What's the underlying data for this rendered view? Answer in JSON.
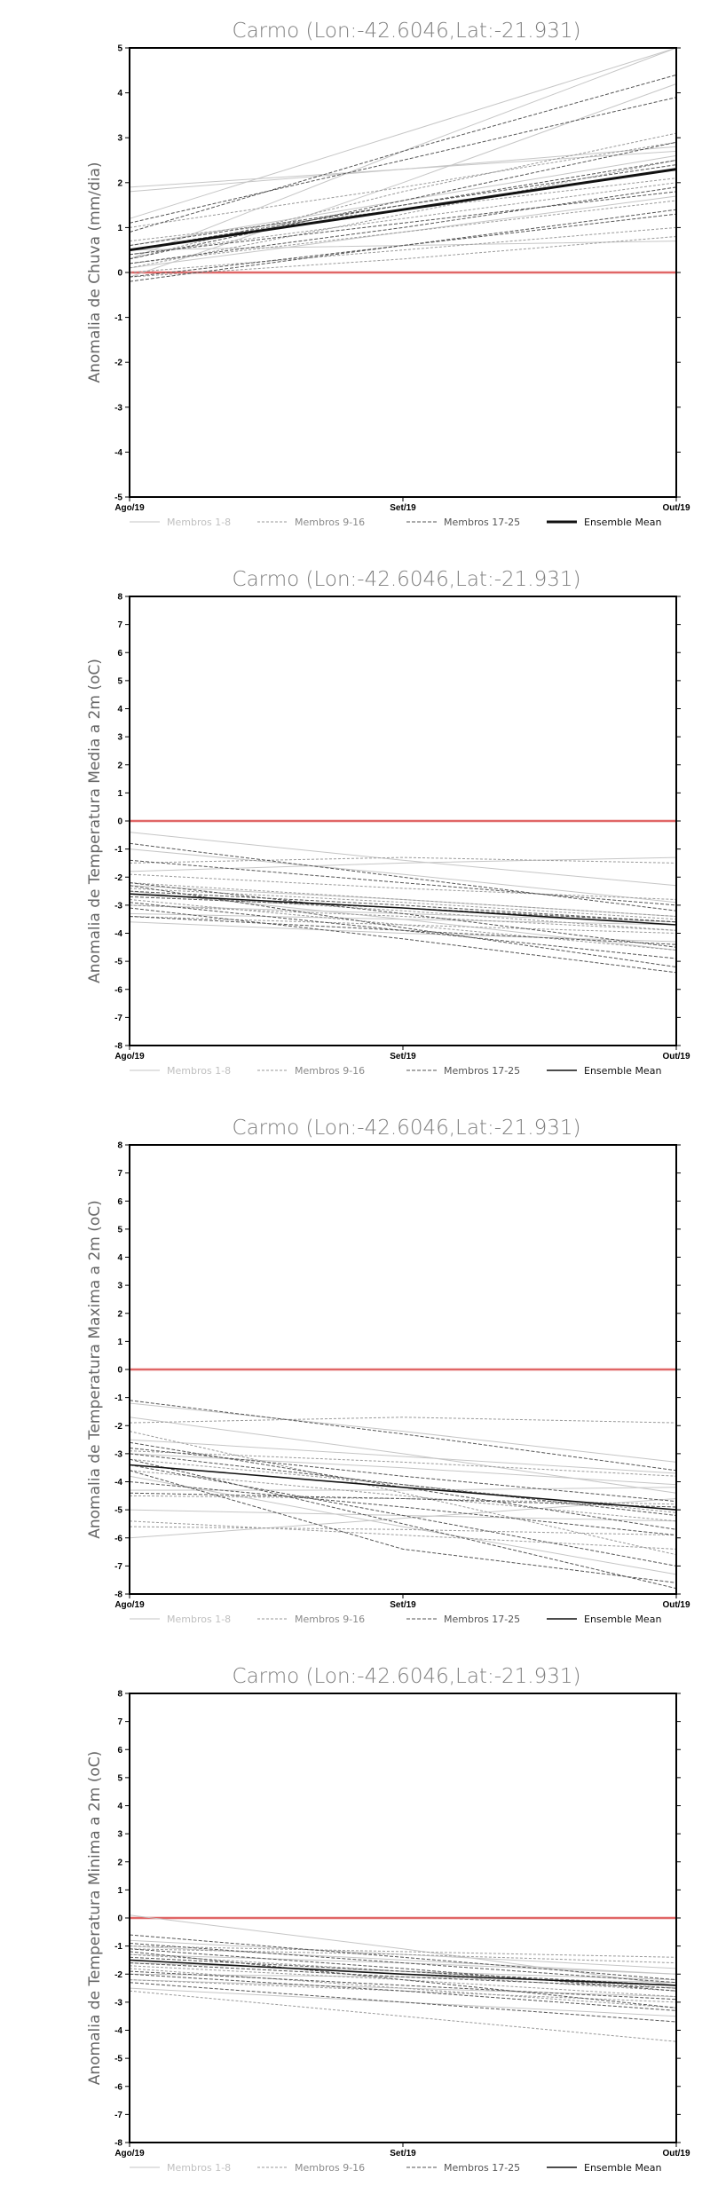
{
  "chart_data": [
    {
      "type": "line",
      "title": "Carmo (Lon:-42.6046,Lat:-21.931)",
      "ylabel": "Anomalia de Chuva (mm/dia)",
      "x": [
        "Ago/19",
        "Set/19",
        "Out/19"
      ],
      "ylim": [
        -5,
        5
      ],
      "yticks": [
        -5,
        -4,
        -3,
        -2,
        -1,
        0,
        1,
        2,
        3,
        4,
        5
      ],
      "mean_bold": true,
      "legend": [
        "Membros 1-8",
        "Membros 9-16",
        "Membros 17-25",
        "Ensemble Mean"
      ],
      "zero_line_color": "#e06666",
      "series": [
        {
          "group": 1,
          "values": [
            0.3,
            2.7,
            5.0
          ]
        },
        {
          "group": 1,
          "values": [
            1.2,
            3.1,
            5.0
          ]
        },
        {
          "group": 1,
          "values": [
            1.9,
            2.3,
            2.7
          ]
        },
        {
          "group": 1,
          "values": [
            1.8,
            2.3,
            2.8
          ]
        },
        {
          "group": 1,
          "values": [
            0.5,
            0.6,
            0.7
          ]
        },
        {
          "group": 1,
          "values": [
            -0.1,
            2.0,
            4.2
          ]
        },
        {
          "group": 1,
          "values": [
            0.1,
            0.9,
            1.7
          ]
        },
        {
          "group": 1,
          "values": [
            0.6,
            1.6,
            2.6
          ]
        },
        {
          "group": 2,
          "values": [
            0.0,
            0.5,
            1.0
          ]
        },
        {
          "group": 2,
          "values": [
            0.3,
            1.8,
            3.1
          ]
        },
        {
          "group": 2,
          "values": [
            1.0,
            1.9,
            2.9
          ]
        },
        {
          "group": 2,
          "values": [
            0.2,
            0.9,
            1.6
          ]
        },
        {
          "group": 2,
          "values": [
            0.4,
            1.2,
            2.0
          ]
        },
        {
          "group": 2,
          "values": [
            -0.1,
            0.3,
            0.8
          ]
        },
        {
          "group": 2,
          "values": [
            0.7,
            1.4,
            2.1
          ]
        },
        {
          "group": 2,
          "values": [
            0.1,
            1.3,
            2.5
          ]
        },
        {
          "group": 3,
          "values": [
            0.9,
            2.7,
            4.4
          ]
        },
        {
          "group": 3,
          "values": [
            1.1,
            2.5,
            3.9
          ]
        },
        {
          "group": 3,
          "values": [
            0.3,
            1.6,
            2.9
          ]
        },
        {
          "group": 3,
          "values": [
            0.5,
            1.5,
            2.5
          ]
        },
        {
          "group": 3,
          "values": [
            -0.1,
            0.6,
            1.3
          ]
        },
        {
          "group": 3,
          "values": [
            0.2,
            1.0,
            1.9
          ]
        },
        {
          "group": 3,
          "values": [
            0.4,
            1.1,
            1.8
          ]
        },
        {
          "group": 3,
          "values": [
            -0.2,
            0.6,
            1.4
          ]
        },
        {
          "group": 3,
          "values": [
            0.6,
            1.5,
            2.4
          ]
        },
        {
          "group": 4,
          "values": [
            0.5,
            1.4,
            2.3
          ]
        }
      ]
    },
    {
      "type": "line",
      "title": "Carmo (Lon:-42.6046,Lat:-21.931)",
      "ylabel": "Anomalia de Temperatura Media a 2m (oC)",
      "x": [
        "Ago/19",
        "Set/19",
        "Out/19"
      ],
      "ylim": [
        -8,
        8
      ],
      "yticks": [
        -8,
        -7,
        -6,
        -5,
        -4,
        -3,
        -2,
        -1,
        0,
        1,
        2,
        3,
        4,
        5,
        6,
        7,
        8
      ],
      "mean_bold": false,
      "legend": [
        "Membros 1-8",
        "Membros 9-16",
        "Membros 17-25",
        "Ensemble Mean"
      ],
      "zero_line_color": "#e06666",
      "series": [
        {
          "group": 1,
          "values": [
            -0.4,
            -1.4,
            -2.3
          ]
        },
        {
          "group": 1,
          "values": [
            -1.8,
            -1.5,
            -1.3
          ]
        },
        {
          "group": 1,
          "values": [
            -2.3,
            -2.8,
            -3.4
          ]
        },
        {
          "group": 1,
          "values": [
            -3.3,
            -3.5,
            -3.7
          ]
        },
        {
          "group": 1,
          "values": [
            -2.5,
            -3.5,
            -4.6
          ]
        },
        {
          "group": 1,
          "values": [
            -3.0,
            -3.3,
            -3.6
          ]
        },
        {
          "group": 1,
          "values": [
            -1.0,
            -1.9,
            -2.9
          ]
        },
        {
          "group": 1,
          "values": [
            -3.6,
            -4.0,
            -4.3
          ]
        },
        {
          "group": 2,
          "values": [
            -1.5,
            -1.3,
            -1.5
          ]
        },
        {
          "group": 2,
          "values": [
            -2.2,
            -2.8,
            -3.4
          ]
        },
        {
          "group": 2,
          "values": [
            -2.8,
            -3.7,
            -4.6
          ]
        },
        {
          "group": 2,
          "values": [
            -3.0,
            -3.4,
            -3.9
          ]
        },
        {
          "group": 2,
          "values": [
            -2.4,
            -2.9,
            -3.5
          ]
        },
        {
          "group": 2,
          "values": [
            -3.4,
            -3.7,
            -4.0
          ]
        },
        {
          "group": 2,
          "values": [
            -1.9,
            -2.4,
            -2.8
          ]
        },
        {
          "group": 2,
          "values": [
            -2.6,
            -3.2,
            -3.9
          ]
        },
        {
          "group": 3,
          "values": [
            -0.8,
            -2.0,
            -3.2
          ]
        },
        {
          "group": 3,
          "values": [
            -2.2,
            -3.3,
            -4.5
          ]
        },
        {
          "group": 3,
          "values": [
            -3.1,
            -4.2,
            -5.4
          ]
        },
        {
          "group": 3,
          "values": [
            -2.3,
            -3.8,
            -5.2
          ]
        },
        {
          "group": 3,
          "values": [
            -2.9,
            -3.9,
            -4.9
          ]
        },
        {
          "group": 3,
          "values": [
            -1.4,
            -2.2,
            -3.0
          ]
        },
        {
          "group": 3,
          "values": [
            -2.7,
            -3.1,
            -3.6
          ]
        },
        {
          "group": 3,
          "values": [
            -3.4,
            -3.9,
            -4.4
          ]
        },
        {
          "group": 3,
          "values": [
            -2.5,
            -3.0,
            -3.6
          ]
        },
        {
          "group": 4,
          "values": [
            -2.6,
            -3.1,
            -3.7
          ]
        }
      ]
    },
    {
      "type": "line",
      "title": "Carmo (Lon:-42.6046,Lat:-21.931)",
      "ylabel": "Anomalia de Temperatura Maxima a 2m (oC)",
      "x": [
        "Ago/19",
        "Set/19",
        "Out/19"
      ],
      "ylim": [
        -8,
        8
      ],
      "yticks": [
        -8,
        -7,
        -6,
        -5,
        -4,
        -3,
        -2,
        -1,
        0,
        1,
        2,
        3,
        4,
        5,
        6,
        7,
        8
      ],
      "mean_bold": false,
      "legend": [
        "Membros 1-8",
        "Membros 9-16",
        "Membros 17-25",
        "Ensemble Mean"
      ],
      "zero_line_color": "#e06666",
      "series": [
        {
          "group": 1,
          "values": [
            -1.2,
            -2.2,
            -3.3
          ]
        },
        {
          "group": 1,
          "values": [
            -6.0,
            -5.3,
            -4.6
          ]
        },
        {
          "group": 1,
          "values": [
            -2.5,
            -3.1,
            -3.7
          ]
        },
        {
          "group": 1,
          "values": [
            -4.3,
            -4.3,
            -4.2
          ]
        },
        {
          "group": 1,
          "values": [
            -3.8,
            -5.6,
            -7.3
          ]
        },
        {
          "group": 1,
          "values": [
            -3.0,
            -3.5,
            -4.1
          ]
        },
        {
          "group": 1,
          "values": [
            -1.7,
            -3.0,
            -4.4
          ]
        },
        {
          "group": 1,
          "values": [
            -5.0,
            -5.2,
            -5.4
          ]
        },
        {
          "group": 2,
          "values": [
            -1.9,
            -1.7,
            -1.9
          ]
        },
        {
          "group": 2,
          "values": [
            -2.2,
            -4.4,
            -6.6
          ]
        },
        {
          "group": 2,
          "values": [
            -4.5,
            -4.6,
            -4.8
          ]
        },
        {
          "group": 2,
          "values": [
            -3.2,
            -4.1,
            -5.1
          ]
        },
        {
          "group": 2,
          "values": [
            -5.6,
            -5.7,
            -5.9
          ]
        },
        {
          "group": 2,
          "values": [
            -2.9,
            -3.3,
            -3.8
          ]
        },
        {
          "group": 2,
          "values": [
            -3.6,
            -4.5,
            -5.4
          ]
        },
        {
          "group": 2,
          "values": [
            -5.4,
            -5.9,
            -6.4
          ]
        },
        {
          "group": 3,
          "values": [
            -1.1,
            -2.3,
            -3.6
          ]
        },
        {
          "group": 3,
          "values": [
            -3.4,
            -5.2,
            -7.0
          ]
        },
        {
          "group": 3,
          "values": [
            -2.6,
            -4.2,
            -5.7
          ]
        },
        {
          "group": 3,
          "values": [
            -3.2,
            -5.5,
            -7.8
          ]
        },
        {
          "group": 3,
          "values": [
            -4.4,
            -4.6,
            -4.9
          ]
        },
        {
          "group": 3,
          "values": [
            -3.0,
            -4.1,
            -5.2
          ]
        },
        {
          "group": 3,
          "values": [
            -3.6,
            -6.4,
            -7.6
          ]
        },
        {
          "group": 3,
          "values": [
            -4.0,
            -4.9,
            -5.9
          ]
        },
        {
          "group": 3,
          "values": [
            -2.8,
            -3.8,
            -4.7
          ]
        },
        {
          "group": 4,
          "values": [
            -3.4,
            -4.2,
            -5.0
          ]
        }
      ]
    },
    {
      "type": "line",
      "title": "Carmo (Lon:-42.6046,Lat:-21.931)",
      "ylabel": "Anomalia de Temperatura Minima a 2m (oC)",
      "x": [
        "Ago/19",
        "Set/19",
        "Out/19"
      ],
      "ylim": [
        -8,
        8
      ],
      "yticks": [
        -8,
        -7,
        -6,
        -5,
        -4,
        -3,
        -2,
        -1,
        0,
        1,
        2,
        3,
        4,
        5,
        6,
        7,
        8
      ],
      "mean_bold": false,
      "legend": [
        "Membros 1-8",
        "Membros 9-16",
        "Membros 17-25",
        "Ensemble Mean"
      ],
      "zero_line_color": "#e06666",
      "series": [
        {
          "group": 1,
          "values": [
            0.1,
            -1.1,
            -2.4
          ]
        },
        {
          "group": 1,
          "values": [
            -1.0,
            -1.5,
            -2.0
          ]
        },
        {
          "group": 1,
          "values": [
            -1.6,
            -1.9,
            -2.2
          ]
        },
        {
          "group": 1,
          "values": [
            -2.2,
            -2.5,
            -2.8
          ]
        },
        {
          "group": 1,
          "values": [
            -0.8,
            -1.3,
            -1.8
          ]
        },
        {
          "group": 1,
          "values": [
            -2.5,
            -3.0,
            -3.5
          ]
        },
        {
          "group": 1,
          "values": [
            -1.3,
            -1.6,
            -2.0
          ]
        },
        {
          "group": 1,
          "values": [
            -2.0,
            -2.1,
            -2.3
          ]
        },
        {
          "group": 2,
          "values": [
            -1.1,
            -1.3,
            -1.6
          ]
        },
        {
          "group": 2,
          "values": [
            -1.5,
            -2.0,
            -2.6
          ]
        },
        {
          "group": 2,
          "values": [
            -2.6,
            -3.5,
            -4.4
          ]
        },
        {
          "group": 2,
          "values": [
            -1.8,
            -2.5,
            -3.2
          ]
        },
        {
          "group": 2,
          "values": [
            -1.3,
            -1.9,
            -2.5
          ]
        },
        {
          "group": 2,
          "values": [
            -2.2,
            -2.6,
            -3.0
          ]
        },
        {
          "group": 2,
          "values": [
            -1.0,
            -1.2,
            -1.4
          ]
        },
        {
          "group": 2,
          "values": [
            -1.7,
            -2.2,
            -2.8
          ]
        },
        {
          "group": 3,
          "values": [
            -0.6,
            -1.4,
            -2.2
          ]
        },
        {
          "group": 3,
          "values": [
            -1.2,
            -2.2,
            -3.2
          ]
        },
        {
          "group": 3,
          "values": [
            -2.3,
            -3.0,
            -3.7
          ]
        },
        {
          "group": 3,
          "values": [
            -1.4,
            -1.9,
            -2.4
          ]
        },
        {
          "group": 3,
          "values": [
            -0.9,
            -1.6,
            -2.3
          ]
        },
        {
          "group": 3,
          "values": [
            -1.9,
            -2.4,
            -2.9
          ]
        },
        {
          "group": 3,
          "values": [
            -2.0,
            -2.6,
            -3.3
          ]
        },
        {
          "group": 3,
          "values": [
            -1.1,
            -1.8,
            -2.6
          ]
        },
        {
          "group": 3,
          "values": [
            -1.6,
            -2.1,
            -2.5
          ]
        },
        {
          "group": 4,
          "values": [
            -1.5,
            -2.0,
            -2.4
          ]
        }
      ]
    }
  ]
}
